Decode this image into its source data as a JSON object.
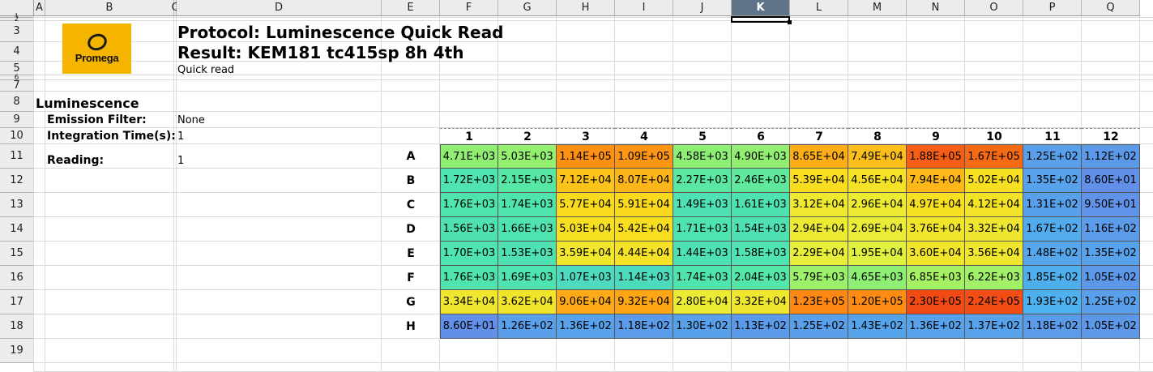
{
  "sheet": {
    "columns": [
      "A",
      "B",
      "C",
      "D",
      "E",
      "F",
      "G",
      "H",
      "I",
      "J",
      "K",
      "L",
      "M",
      "N",
      "O",
      "P",
      "Q"
    ],
    "selected_column": "K",
    "rows": [
      "1",
      "2",
      "3",
      "4",
      "5",
      "6",
      "7",
      "8",
      "9",
      "10",
      "11",
      "12",
      "13",
      "14",
      "15",
      "16",
      "17",
      "18",
      "19"
    ]
  },
  "logo": {
    "text": "Promega"
  },
  "header": {
    "protocol": "Protocol: Luminescence Quick Read",
    "result": "Result: KEM181 tc415sp 8h 4th",
    "subtitle": "Quick read"
  },
  "section": {
    "title": "Luminescence",
    "emission_filter_label": "Emission Filter:",
    "emission_filter_value": "None",
    "integration_time_label": "Integration Time(s):",
    "integration_time_value": "1",
    "reading_label": "Reading:",
    "reading_value": "1"
  },
  "plate": {
    "col_headers": [
      "1",
      "2",
      "3",
      "4",
      "5",
      "6",
      "7",
      "8",
      "9",
      "10",
      "11",
      "12"
    ],
    "row_labels": [
      "A",
      "B",
      "C",
      "D",
      "E",
      "F",
      "G",
      "H"
    ],
    "values": [
      [
        "4.71E+03",
        "5.03E+03",
        "1.14E+05",
        "1.09E+05",
        "4.58E+03",
        "4.90E+03",
        "8.65E+04",
        "7.49E+04",
        "1.88E+05",
        "1.67E+05",
        "1.25E+02",
        "1.12E+02"
      ],
      [
        "1.72E+03",
        "2.15E+03",
        "7.12E+04",
        "8.07E+04",
        "2.27E+03",
        "2.46E+03",
        "5.39E+04",
        "4.56E+04",
        "7.94E+04",
        "5.02E+04",
        "1.35E+02",
        "8.60E+01"
      ],
      [
        "1.76E+03",
        "1.74E+03",
        "5.77E+04",
        "5.91E+04",
        "1.49E+03",
        "1.61E+03",
        "3.12E+04",
        "2.96E+04",
        "4.97E+04",
        "4.12E+04",
        "1.31E+02",
        "9.50E+01"
      ],
      [
        "1.56E+03",
        "1.66E+03",
        "5.03E+04",
        "5.42E+04",
        "1.71E+03",
        "1.54E+03",
        "2.94E+04",
        "2.69E+04",
        "3.76E+04",
        "3.32E+04",
        "1.67E+02",
        "1.16E+02"
      ],
      [
        "1.70E+03",
        "1.53E+03",
        "3.59E+04",
        "4.44E+04",
        "1.44E+03",
        "1.58E+03",
        "2.29E+04",
        "1.95E+04",
        "3.60E+04",
        "3.56E+04",
        "1.48E+02",
        "1.35E+02"
      ],
      [
        "1.76E+03",
        "1.69E+03",
        "1.07E+03",
        "1.14E+03",
        "1.74E+03",
        "2.04E+03",
        "5.79E+03",
        "4.65E+03",
        "6.85E+03",
        "6.22E+03",
        "1.85E+02",
        "1.05E+02"
      ],
      [
        "3.34E+04",
        "3.62E+04",
        "9.06E+04",
        "9.32E+04",
        "2.80E+04",
        "3.32E+04",
        "1.23E+05",
        "1.20E+05",
        "2.30E+05",
        "2.24E+05",
        "1.93E+02",
        "1.25E+02"
      ],
      [
        "8.60E+01",
        "1.26E+02",
        "1.36E+02",
        "1.18E+02",
        "1.30E+02",
        "1.13E+02",
        "1.25E+02",
        "1.43E+02",
        "1.36E+02",
        "1.37E+02",
        "1.18E+02",
        "1.05E+02"
      ]
    ]
  }
}
